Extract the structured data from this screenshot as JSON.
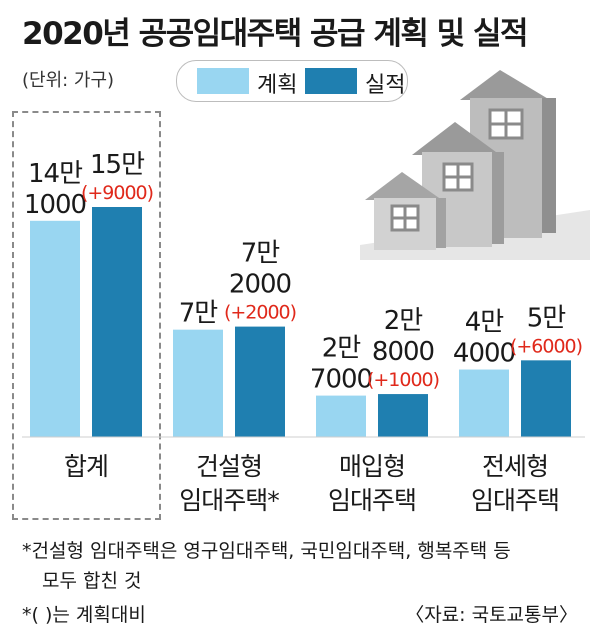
{
  "title": "2020년 공공임대주택 공급 계획 및 실적",
  "unit": "(단위: 가구)",
  "legend": {
    "plan_label": "계획",
    "actual_label": "실적"
  },
  "colors": {
    "plan": "#99d6f1",
    "actual": "#1f7fb0",
    "delta": "#e0291b",
    "house": "#a8a8a8",
    "ground": "#dcdcdc"
  },
  "chart_data": {
    "type": "bar",
    "categories": [
      [
        "합계"
      ],
      [
        "건설형",
        "임대주택*"
      ],
      [
        "매입형",
        "임대주택"
      ],
      [
        "전세형",
        "임대주택"
      ]
    ],
    "series": [
      {
        "name": "계획",
        "values": [
          141000,
          70000,
          27000,
          44000
        ]
      },
      {
        "name": "실적",
        "values": [
          150000,
          72000,
          28000,
          50000
        ]
      }
    ],
    "labels": [
      {
        "plan": [
          "14만",
          "1000"
        ],
        "actual": [
          "15만"
        ],
        "delta": "(+9000)"
      },
      {
        "plan": [
          "7만"
        ],
        "actual": [
          "7만",
          "2000"
        ],
        "delta": "(+2000)"
      },
      {
        "plan": [
          "2만",
          "7000"
        ],
        "actual": [
          "2만",
          "8000"
        ],
        "delta": "(+1000)"
      },
      {
        "plan": [
          "4만",
          "4000"
        ],
        "actual": [
          "5만"
        ],
        "delta": "(+6000)"
      }
    ]
  },
  "footnotes": [
    "*건설형 임대주택은 영구임대주택, 국민임대주택, 행복주택 등",
    "모두 합친 것",
    "*( )는 계획대비"
  ],
  "source": "〈자료: 국토교통부〉"
}
